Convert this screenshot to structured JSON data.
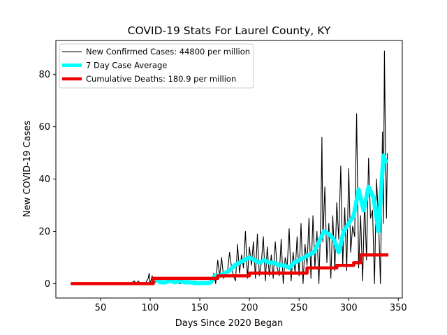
{
  "chart_data": {
    "type": "line",
    "title": "COVID-19 Stats For Laurel County, KY",
    "xlabel": "Days Since 2020 Began",
    "ylabel": "New COVID-19 Cases",
    "xlim": [
      5,
      354
    ],
    "ylim": [
      -5.5,
      93
    ],
    "xticks": [
      50,
      100,
      150,
      200,
      250,
      300,
      350
    ],
    "yticks": [
      0,
      20,
      40,
      60,
      80
    ],
    "grid": false,
    "legend_position": "top-left",
    "series": [
      {
        "name": "New Confirmed Cases: 44800 per million",
        "color": "#000000",
        "x": [
          20,
          40,
          60,
          80,
          84,
          86,
          88,
          90,
          95,
          98,
          99,
          100,
          102,
          104,
          106,
          110,
          115,
          120,
          125,
          130,
          135,
          140,
          145,
          150,
          155,
          160,
          162,
          164,
          166,
          168,
          170,
          172,
          174,
          176,
          178,
          180,
          182,
          184,
          186,
          188,
          190,
          192,
          194,
          196,
          198,
          200,
          202,
          204,
          206,
          208,
          210,
          212,
          214,
          216,
          218,
          220,
          222,
          224,
          226,
          228,
          230,
          232,
          234,
          236,
          238,
          240,
          242,
          244,
          246,
          248,
          250,
          252,
          254,
          256,
          258,
          260,
          262,
          264,
          266,
          268,
          270,
          272,
          273,
          274,
          276,
          278,
          280,
          282,
          284,
          286,
          288,
          290,
          292,
          294,
          296,
          298,
          300,
          302,
          304,
          306,
          308,
          310,
          312,
          314,
          316,
          318,
          320,
          322,
          324,
          326,
          328,
          330,
          332,
          334,
          335,
          336,
          337,
          338,
          339
        ],
        "values": [
          0,
          0,
          0,
          0,
          1,
          0,
          1,
          0,
          0,
          2,
          4,
          0,
          3,
          0,
          1,
          1,
          0,
          2,
          1,
          0,
          1,
          0,
          1,
          0,
          0,
          0,
          0,
          4,
          0,
          9,
          3,
          10,
          2,
          4,
          5,
          12,
          6,
          3,
          1,
          15,
          4,
          11,
          6,
          20,
          2,
          14,
          7,
          16,
          2,
          19,
          3,
          8,
          18,
          1,
          14,
          3,
          11,
          2,
          16,
          6,
          3,
          17,
          0,
          10,
          6,
          21,
          1,
          12,
          4,
          18,
          3,
          23,
          0,
          15,
          7,
          25,
          2,
          26,
          6,
          20,
          0,
          27,
          56,
          16,
          37,
          8,
          23,
          2,
          26,
          5,
          31,
          17,
          45,
          7,
          29,
          5,
          44,
          12,
          22,
          18,
          65,
          6,
          26,
          1,
          32,
          9,
          48,
          25,
          28,
          0,
          40,
          25,
          0,
          58,
          23,
          89,
          55,
          25,
          50
        ]
      },
      {
        "name": "7 Day Case Average",
        "color": "#00ffff",
        "x": [
          105,
          110,
          115,
          120,
          125,
          130,
          135,
          140,
          145,
          150,
          155,
          160,
          162,
          165,
          170,
          175,
          180,
          185,
          190,
          195,
          200,
          205,
          210,
          215,
          220,
          225,
          230,
          235,
          240,
          245,
          250,
          255,
          260,
          265,
          270,
          275,
          280,
          285,
          290,
          295,
          300,
          305,
          310,
          315,
          320,
          325,
          330,
          335,
          338
        ],
        "values": [
          2,
          0.5,
          0.5,
          1,
          0.5,
          1,
          0.5,
          0.5,
          0.2,
          0.2,
          0.2,
          0.3,
          1,
          3,
          3,
          4,
          5,
          7,
          8,
          9,
          10,
          9,
          8,
          9,
          8,
          8,
          7,
          7,
          6,
          8,
          9,
          10,
          11,
          12,
          16,
          20,
          19,
          17,
          12,
          20,
          23,
          26,
          36,
          28,
          37,
          33,
          20,
          49,
          46
        ]
      },
      {
        "name": "Cumulative Deaths: 180.9 per million",
        "color": "#ee0000",
        "x": [
          20,
          103,
          103,
          168,
          168,
          180,
          180,
          200,
          200,
          258,
          258,
          288,
          288,
          305,
          305,
          312,
          312,
          340
        ],
        "values": [
          0,
          0,
          2,
          2,
          3,
          3,
          3,
          3,
          4,
          4,
          6,
          6,
          7,
          7,
          8,
          8,
          11,
          11
        ]
      }
    ]
  }
}
